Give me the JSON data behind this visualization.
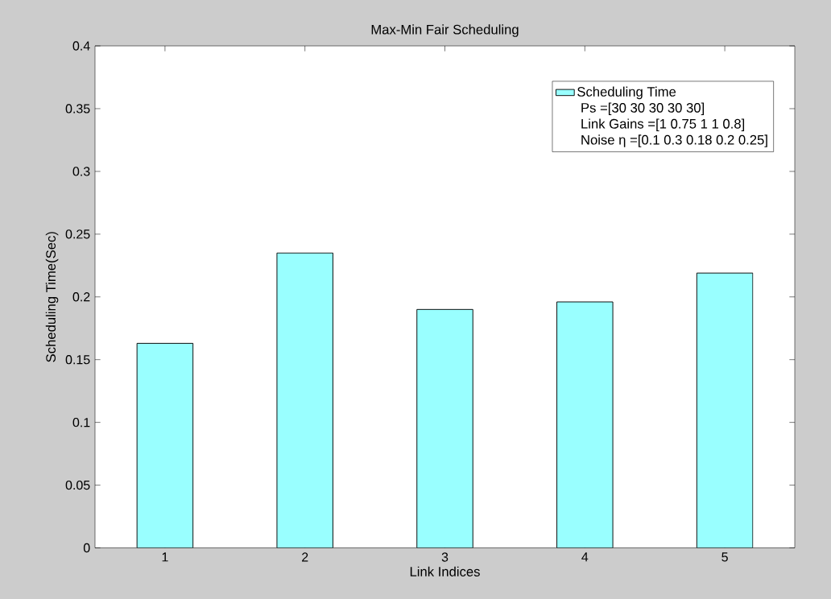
{
  "chart_data": {
    "type": "bar",
    "title": "Max-Min Fair Scheduling",
    "xlabel": "Link Indices",
    "ylabel": "Scheduling Time(Sec)",
    "categories": [
      "1",
      "2",
      "3",
      "4",
      "5"
    ],
    "series": [
      {
        "name": "Scheduling Time",
        "color": "#99ffff",
        "values": [
          0.163,
          0.235,
          0.19,
          0.196,
          0.219
        ]
      }
    ],
    "annotations": [
      "Ps =[30 30 30 30 30]",
      "Link Gains =[1 0.75 1 1 0.8]",
      "Noise η =[0.1 0.3 0.18 0.2 0.25]"
    ],
    "ylim": [
      0,
      0.4
    ],
    "yticks": [
      0,
      0.05,
      0.1,
      0.15,
      0.2,
      0.25,
      0.3,
      0.35,
      0.4
    ],
    "legend": "top right"
  }
}
